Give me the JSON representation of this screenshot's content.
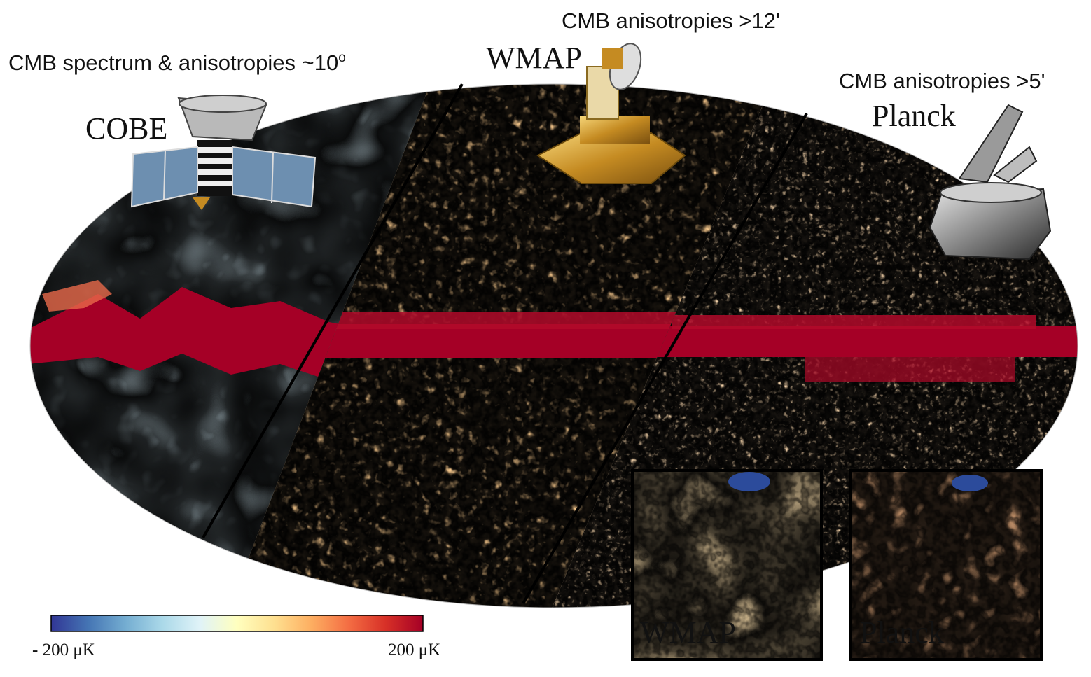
{
  "missions": [
    {
      "name": "COBE",
      "caption": "CMB spectrum & anisotropies ~10",
      "caption_sup": "o"
    },
    {
      "name": "WMAP",
      "caption": "CMB anisotropies >12'"
    },
    {
      "name": "Planck",
      "caption": "CMB anisotropies >5'"
    }
  ],
  "insets": [
    {
      "label": "WMAP"
    },
    {
      "label": "Planck"
    }
  ],
  "colorbar": {
    "min_label": "- 200 μK",
    "max_label": "200 μK",
    "stops": [
      "#313695",
      "#4575b4",
      "#74add1",
      "#abd9e9",
      "#e0f3f8",
      "#ffffbf",
      "#fee090",
      "#fdae61",
      "#f46d43",
      "#d73027",
      "#a50026"
    ]
  }
}
